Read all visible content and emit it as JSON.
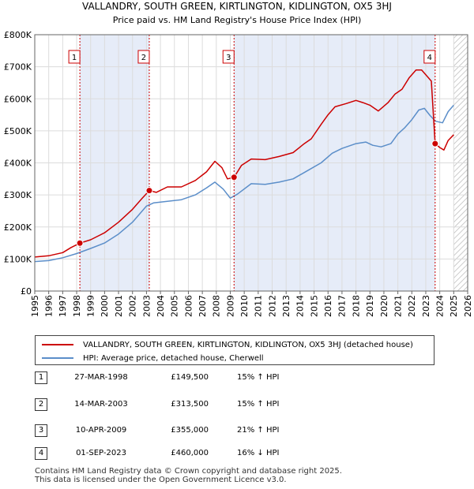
{
  "chart_data": {
    "type": "line",
    "title": "VALLANDRY, SOUTH GREEN, KIRTLINGTON, KIDLINGTON, OX5 3HJ",
    "subtitle": "Price paid vs. HM Land Registry's House Price Index (HPI)",
    "xlim": [
      1995,
      2026
    ],
    "ylim": [
      0,
      800000
    ],
    "x_ticks": [
      1995,
      1996,
      1997,
      1998,
      1999,
      2000,
      2001,
      2002,
      2003,
      2004,
      2005,
      2006,
      2007,
      2008,
      2009,
      2010,
      2011,
      2012,
      2013,
      2014,
      2015,
      2016,
      2017,
      2018,
      2019,
      2020,
      2021,
      2022,
      2023,
      2024,
      2025,
      2026
    ],
    "y_ticks": [
      {
        "value": 0,
        "label": "£0"
      },
      {
        "value": 100000,
        "label": "£100K"
      },
      {
        "value": 200000,
        "label": "£200K"
      },
      {
        "value": 300000,
        "label": "£300K"
      },
      {
        "value": 400000,
        "label": "£400K"
      },
      {
        "value": 500000,
        "label": "£500K"
      },
      {
        "value": 600000,
        "label": "£600K"
      },
      {
        "value": 700000,
        "label": "£700K"
      },
      {
        "value": 800000,
        "label": "£800K"
      }
    ],
    "shaded_ranges": [
      [
        1998.23,
        2003.2
      ],
      [
        2009.27,
        2023.67
      ]
    ],
    "future_start": 2025.0,
    "series": [
      {
        "name": "VALLANDRY, SOUTH GREEN, KIRTLINGTON, KIDLINGTON, OX5 3HJ (detached house)",
        "color": "#cc0000",
        "points": [
          [
            1995.0,
            106000
          ],
          [
            1996.0,
            110000
          ],
          [
            1997.0,
            120000
          ],
          [
            1997.6,
            136000
          ],
          [
            1998.23,
            149500
          ],
          [
            1999.0,
            160000
          ],
          [
            2000.0,
            182000
          ],
          [
            2001.0,
            215000
          ],
          [
            2002.0,
            255000
          ],
          [
            2002.7,
            290000
          ],
          [
            2003.2,
            313500
          ],
          [
            2003.7,
            308000
          ],
          [
            2004.5,
            325000
          ],
          [
            2005.5,
            325000
          ],
          [
            2006.5,
            345000
          ],
          [
            2007.3,
            372000
          ],
          [
            2007.9,
            405000
          ],
          [
            2008.4,
            385000
          ],
          [
            2008.8,
            350000
          ],
          [
            2009.27,
            355000
          ],
          [
            2009.8,
            392000
          ],
          [
            2010.5,
            412000
          ],
          [
            2011.5,
            410000
          ],
          [
            2012.5,
            420000
          ],
          [
            2013.5,
            432000
          ],
          [
            2014.3,
            460000
          ],
          [
            2014.8,
            475000
          ],
          [
            2015.5,
            520000
          ],
          [
            2016.0,
            550000
          ],
          [
            2016.5,
            575000
          ],
          [
            2017.3,
            585000
          ],
          [
            2018.0,
            595000
          ],
          [
            2018.5,
            588000
          ],
          [
            2019.0,
            580000
          ],
          [
            2019.6,
            562000
          ],
          [
            2020.3,
            588000
          ],
          [
            2020.8,
            615000
          ],
          [
            2021.3,
            630000
          ],
          [
            2021.8,
            665000
          ],
          [
            2022.3,
            690000
          ],
          [
            2022.7,
            690000
          ],
          [
            2023.1,
            670000
          ],
          [
            2023.4,
            655000
          ],
          [
            2023.67,
            460000
          ],
          [
            2024.0,
            448000
          ],
          [
            2024.3,
            440000
          ],
          [
            2024.6,
            470000
          ],
          [
            2025.0,
            488000
          ]
        ]
      },
      {
        "name": "HPI: Average price, detached house, Cherwell",
        "color": "#5b8ec9",
        "points": [
          [
            1995.0,
            92000
          ],
          [
            1996.0,
            95000
          ],
          [
            1997.0,
            104000
          ],
          [
            1998.0,
            117000
          ],
          [
            1999.0,
            133000
          ],
          [
            2000.0,
            150000
          ],
          [
            2001.0,
            178000
          ],
          [
            2002.0,
            215000
          ],
          [
            2003.0,
            265000
          ],
          [
            2003.5,
            275000
          ],
          [
            2004.5,
            280000
          ],
          [
            2005.5,
            285000
          ],
          [
            2006.5,
            300000
          ],
          [
            2007.3,
            322000
          ],
          [
            2007.9,
            340000
          ],
          [
            2008.5,
            318000
          ],
          [
            2009.0,
            290000
          ],
          [
            2009.5,
            302000
          ],
          [
            2010.5,
            335000
          ],
          [
            2011.5,
            333000
          ],
          [
            2012.5,
            340000
          ],
          [
            2013.5,
            350000
          ],
          [
            2014.5,
            375000
          ],
          [
            2015.5,
            400000
          ],
          [
            2016.3,
            430000
          ],
          [
            2017.0,
            445000
          ],
          [
            2018.0,
            460000
          ],
          [
            2018.7,
            465000
          ],
          [
            2019.2,
            455000
          ],
          [
            2019.8,
            450000
          ],
          [
            2020.5,
            460000
          ],
          [
            2021.0,
            490000
          ],
          [
            2021.5,
            510000
          ],
          [
            2022.0,
            535000
          ],
          [
            2022.5,
            565000
          ],
          [
            2022.9,
            570000
          ],
          [
            2023.3,
            548000
          ],
          [
            2023.7,
            530000
          ],
          [
            2024.2,
            525000
          ],
          [
            2024.6,
            560000
          ],
          [
            2025.0,
            580000
          ]
        ]
      }
    ],
    "sales": [
      {
        "n": "1",
        "year": 1998.23,
        "price": 149500
      },
      {
        "n": "2",
        "year": 2003.2,
        "price": 313500
      },
      {
        "n": "3",
        "year": 2009.27,
        "price": 355000
      },
      {
        "n": "4",
        "year": 2023.67,
        "price": 460000
      }
    ]
  },
  "legend": {
    "property_label": "VALLANDRY, SOUTH GREEN, KIRTLINGTON, KIDLINGTON, OX5 3HJ (detached house)",
    "hpi_label": "HPI: Average price, detached house, Cherwell"
  },
  "table": {
    "rows": [
      {
        "n": "1",
        "date": "27-MAR-1998",
        "price": "£149,500",
        "hpi": "15% ↑ HPI"
      },
      {
        "n": "2",
        "date": "14-MAR-2003",
        "price": "£313,500",
        "hpi": "15% ↑ HPI"
      },
      {
        "n": "3",
        "date": "10-APR-2009",
        "price": "£355,000",
        "hpi": "21% ↑ HPI"
      },
      {
        "n": "4",
        "date": "01-SEP-2023",
        "price": "£460,000",
        "hpi": "16% ↓ HPI"
      }
    ]
  },
  "footer": {
    "line1": "Contains HM Land Registry data © Crown copyright and database right 2025.",
    "line2": "This data is licensed under the Open Government Licence v3.0."
  }
}
